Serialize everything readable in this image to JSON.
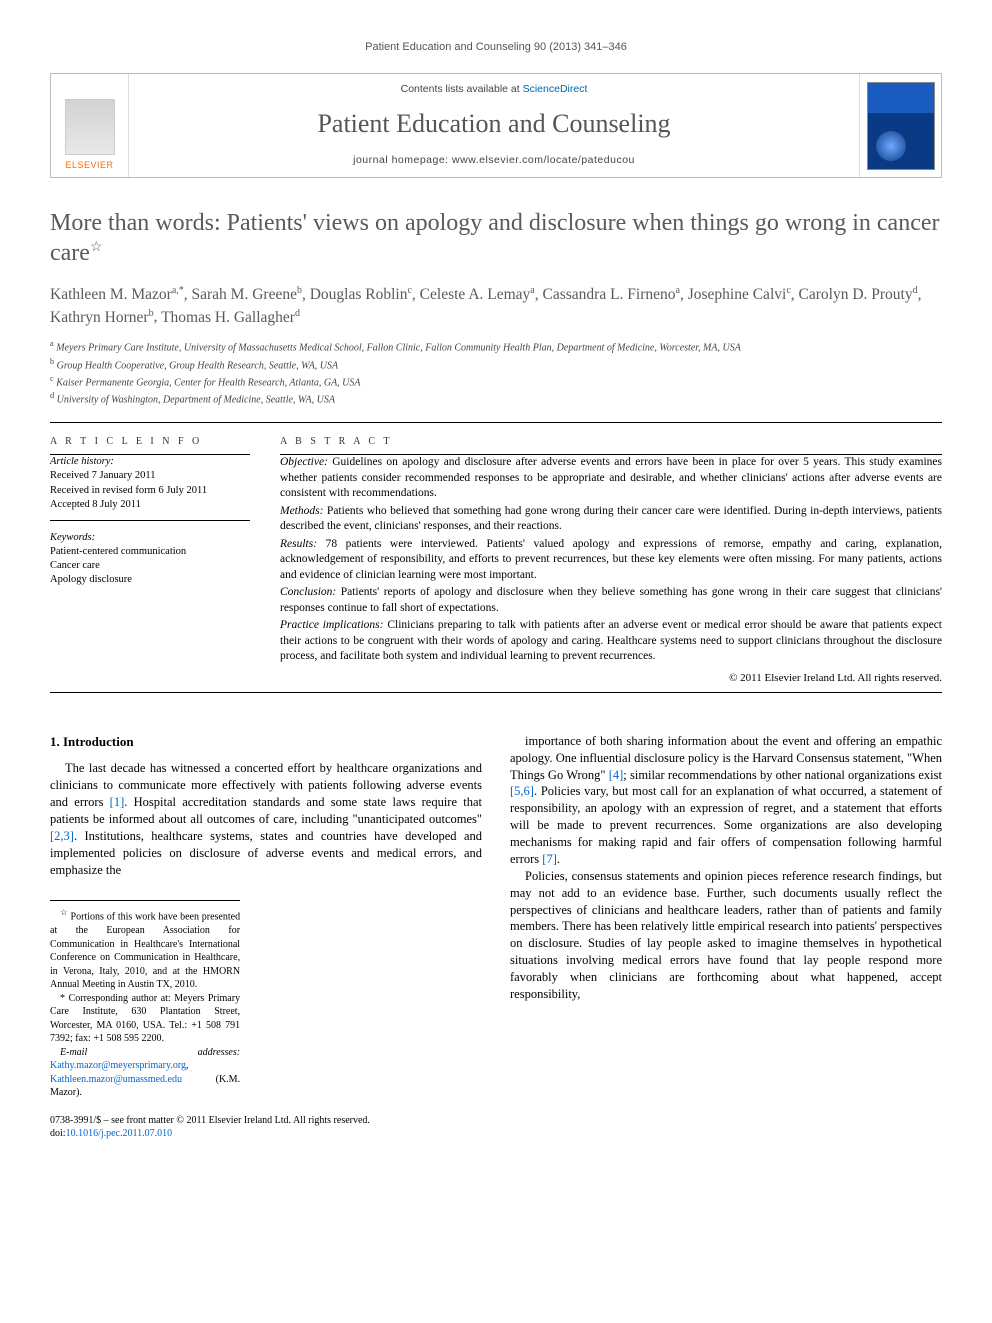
{
  "runningHead": "Patient Education and Counseling 90 (2013) 341–346",
  "masthead": {
    "contentsLine_pre": "Contents lists available at ",
    "contentsLine_link": "ScienceDirect",
    "journalTitle": "Patient Education and Counseling",
    "homepage_pre": "journal homepage: ",
    "homepage_url": "www.elsevier.com/locate/pateducou",
    "publisher": "ELSEVIER"
  },
  "title": "More than words: Patients' views on apology and disclosure when things go wrong in cancer care",
  "title_note_marker": "☆",
  "authors_html": [
    {
      "name": "Kathleen M. Mazor",
      "sup": "a,*"
    },
    {
      "name": "Sarah M. Greene",
      "sup": "b"
    },
    {
      "name": "Douglas Roblin",
      "sup": "c"
    },
    {
      "name": "Celeste A. Lemay",
      "sup": "a"
    },
    {
      "name": "Cassandra L. Firneno",
      "sup": "a"
    },
    {
      "name": "Josephine Calvi",
      "sup": "c"
    },
    {
      "name": "Carolyn D. Prouty",
      "sup": "d"
    },
    {
      "name": "Kathryn Horner",
      "sup": "b"
    },
    {
      "name": "Thomas H. Gallagher",
      "sup": "d"
    }
  ],
  "affiliations": [
    {
      "sup": "a",
      "text": "Meyers Primary Care Institute, University of Massachusetts Medical School, Fallon Clinic, Fallon Community Health Plan, Department of Medicine, Worcester, MA, USA"
    },
    {
      "sup": "b",
      "text": "Group Health Cooperative, Group Health Research, Seattle, WA, USA"
    },
    {
      "sup": "c",
      "text": "Kaiser Permanente Georgia, Center for Health Research, Atlanta, GA, USA"
    },
    {
      "sup": "d",
      "text": "University of Washington, Department of Medicine, Seattle, WA, USA"
    }
  ],
  "articleInfo": {
    "head": "A R T I C L E   I N F O",
    "historyLabel": "Article history:",
    "history": [
      "Received 7 January 2011",
      "Received in revised form 6 July 2011",
      "Accepted 8 July 2011"
    ],
    "keywordsLabel": "Keywords:",
    "keywords": [
      "Patient-centered communication",
      "Cancer care",
      "Apology disclosure"
    ]
  },
  "abstract": {
    "head": "A B S T R A C T",
    "sections": [
      {
        "lead": "Objective:",
        "text": " Guidelines on apology and disclosure after adverse events and errors have been in place for over 5 years. This study examines whether patients consider recommended responses to be appropriate and desirable, and whether clinicians' actions after adverse events are consistent with recommendations."
      },
      {
        "lead": "Methods:",
        "text": " Patients who believed that something had gone wrong during their cancer care were identified. During in-depth interviews, patients described the event, clinicians' responses, and their reactions."
      },
      {
        "lead": "Results:",
        "text": " 78 patients were interviewed. Patients' valued apology and expressions of remorse, empathy and caring, explanation, acknowledgement of responsibility, and efforts to prevent recurrences, but these key elements were often missing. For many patients, actions and evidence of clinician learning were most important."
      },
      {
        "lead": "Conclusion:",
        "text": " Patients' reports of apology and disclosure when they believe something has gone wrong in their care suggest that clinicians' responses continue to fall short of expectations."
      },
      {
        "lead": "Practice implications:",
        "text": " Clinicians preparing to talk with patients after an adverse event or medical error should be aware that patients expect their actions to be congruent with their words of apology and caring. Healthcare systems need to support clinicians throughout the disclosure process, and facilitate both system and individual learning to prevent recurrences."
      }
    ],
    "copyright": "© 2011 Elsevier Ireland Ltd. All rights reserved."
  },
  "body": {
    "section1_head": "1. Introduction",
    "para1": "The last decade has witnessed a concerted effort by healthcare organizations and clinicians to communicate more effectively with patients following adverse events and errors [1]. Hospital accreditation standards and some state laws require that patients be informed about all outcomes of care, including \"unanticipated outcomes\" [2,3]. Institutions, healthcare systems, states and countries have developed and implemented policies on disclosure of adverse events and medical errors, and emphasize the",
    "para2": "importance of both sharing information about the event and offering an empathic apology. One influential disclosure policy is the Harvard Consensus statement, \"When Things Go Wrong\" [4]; similar recommendations by other national organizations exist [5,6]. Policies vary, but most call for an explanation of what occurred, a statement of responsibility, an apology with an expression of regret, and a statement that efforts will be made to prevent recurrences. Some organizations are also developing mechanisms for making rapid and fair offers of compensation following harmful errors [7].",
    "para3": "Policies, consensus statements and opinion pieces reference research findings, but may not add to an evidence base. Further, such documents usually reflect the perspectives of clinicians and healthcare leaders, rather than of patients and family members. There has been relatively little empirical research into patients' perspectives on disclosure. Studies of lay people asked to imagine themselves in hypothetical situations involving medical errors have found that lay people respond more favorably when clinicians are forthcoming about what happened, accept responsibility,"
  },
  "footnotes": {
    "note_marker": "☆",
    "note_text": " Portions of this work have been presented at the European Association for Communication in Healthcare's International Conference on Communication in Healthcare, in Verona, Italy, 2010, and at the HMORN Annual Meeting in Austin TX, 2010.",
    "corr_marker": "*",
    "corr_text": " Corresponding author at: Meyers Primary Care Institute, 630 Plantation Street, Worcester, MA 0160, USA. Tel.: +1 508 791 7392; fax: +1 508 595 2200.",
    "email_label": "E-mail addresses: ",
    "email1": "Kathy.mazor@meyersprimary.org",
    "email_sep": ", ",
    "email2": "Kathleen.mazor@umassmed.edu",
    "email_owner": " (K.M. Mazor)."
  },
  "pageFooter": {
    "line1": "0738-3991/$ – see front matter © 2011 Elsevier Ireland Ltd. All rights reserved.",
    "doi_label": "doi:",
    "doi": "10.1016/j.pec.2011.07.010"
  },
  "colors": {
    "link": "#0066cc",
    "elsevier_orange": "#ff6a00",
    "title_grey": "#5a5a5a"
  }
}
